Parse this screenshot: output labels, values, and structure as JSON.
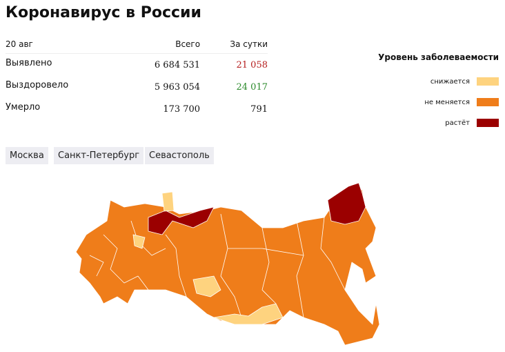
{
  "header": {
    "title": "Коронавирус в России"
  },
  "table": {
    "columns": [
      "20 авг",
      "Всего",
      "За сутки"
    ],
    "rows": [
      [
        "Выявлено",
        "6 684 531",
        "21 058"
      ],
      [
        "Выздоровело",
        "5 963 054",
        "24 017"
      ],
      [
        "Умерло",
        "173 700",
        "791"
      ]
    ]
  },
  "legend": {
    "title": "Уровень заболеваемости",
    "items": [
      {
        "label": "снижается",
        "color": "#fed37f"
      },
      {
        "label": "не меняется",
        "color": "#ef7d1a"
      },
      {
        "label": "растёт",
        "color": "#9b0000"
      }
    ]
  },
  "buttons": [
    "Москва",
    "Санкт-Петербург",
    "Севастополь"
  ]
}
